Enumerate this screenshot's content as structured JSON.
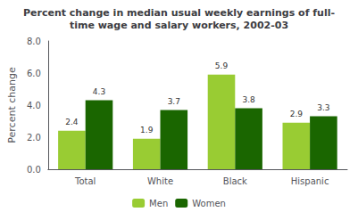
{
  "chart_data": {
    "type": "bar",
    "title": "Percent change in median usual weekly earnings of full-\ntime wage and salary workers, 2002-03",
    "categories": [
      "Total",
      "White",
      "Black",
      "Hispanic"
    ],
    "series": [
      {
        "name": "Men",
        "color": "#99cc33",
        "values": [
          2.4,
          1.9,
          5.9,
          2.9
        ]
      },
      {
        "name": "Women",
        "color": "#1a6600",
        "values": [
          4.3,
          3.7,
          3.8,
          3.3
        ]
      }
    ],
    "ylabel": "Percent change",
    "ylim": [
      0.0,
      8.0
    ],
    "yticks": [
      {
        "value": 0.0,
        "label": "0.0"
      },
      {
        "value": 2.0,
        "label": "2.0"
      },
      {
        "value": 4.0,
        "label": "4.0"
      },
      {
        "value": 6.0,
        "label": "6.0"
      },
      {
        "value": 8.0,
        "label": "8.0"
      }
    ],
    "grid": false,
    "legend": "bottom",
    "data_labels": true
  }
}
